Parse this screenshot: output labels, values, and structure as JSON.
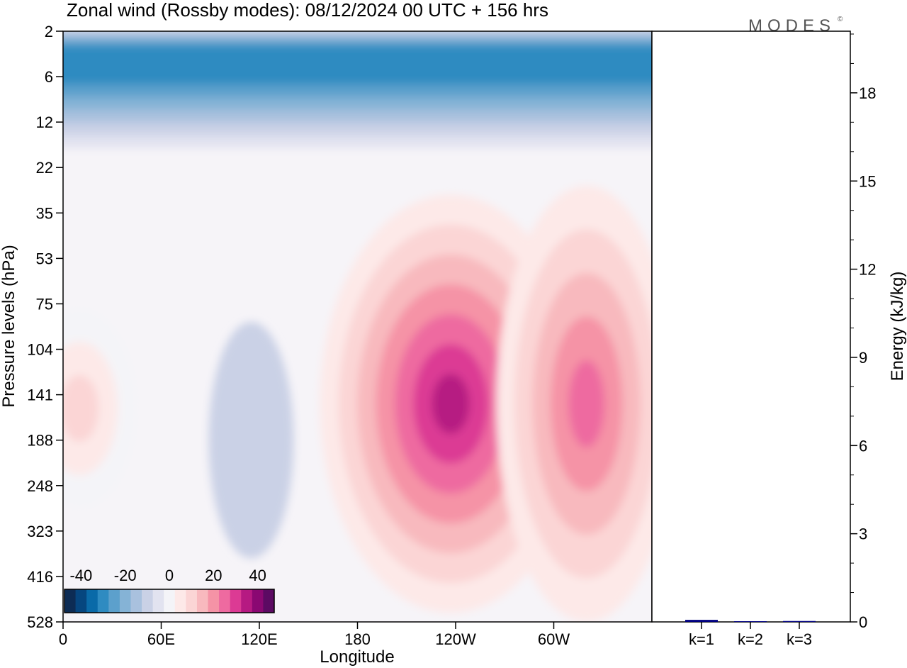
{
  "chart_data": [
    {
      "type": "heatmap",
      "title": "Zonal wind (Rossby modes):  08/12/2024  00 UTC  + 156 hrs",
      "xlabel": "Longitude",
      "ylabel": "Pressure levels (hPa)",
      "x_ticks": [
        "0",
        "60E",
        "120E",
        "180",
        "120W",
        "60W"
      ],
      "x_tick_values": [
        0,
        60,
        120,
        180,
        240,
        300
      ],
      "xlim": [
        0,
        360
      ],
      "y_ticks": [
        "2",
        "6",
        "12",
        "22",
        "35",
        "53",
        "75",
        "104",
        "141",
        "188",
        "248",
        "323",
        "416",
        "528"
      ],
      "y_scale": "model levels (non-linear)",
      "colorbar": {
        "tick_labels": [
          "-40",
          "-20",
          "0",
          "20",
          "40"
        ],
        "tick_values": [
          -40,
          -20,
          0,
          20,
          40
        ],
        "levels": [
          -45,
          -40,
          -35,
          -30,
          -25,
          -20,
          -15,
          -10,
          -5,
          0,
          5,
          10,
          15,
          20,
          25,
          30,
          35,
          40,
          45
        ],
        "colors": [
          "#0d2c54",
          "#06467f",
          "#0a6aa8",
          "#2f8bc1",
          "#5ca0cc",
          "#85b3d6",
          "#a9c1de",
          "#cad1e6",
          "#e2e3f0",
          "#f4f4f8",
          "#fde9e8",
          "#fbd5d5",
          "#f8b9be",
          "#f593a6",
          "#ee6aa0",
          "#dc3a94",
          "#b61a82",
          "#8a0872",
          "#5c0a63"
        ],
        "placement": "bottom-left"
      },
      "features": [
        {
          "region": "upper levels 2-12 hPa, all longitudes",
          "value_min": -30,
          "value_max": -5,
          "peak": -30
        },
        {
          "region": "120W, 104-248 hPa",
          "value_min": 5,
          "value_max": 35,
          "peak": 35
        },
        {
          "region": "40W, 104-248 hPa",
          "value_min": 5,
          "value_max": 25,
          "peak": 25
        },
        {
          "region": "0-30E, 104-248 hPa",
          "value_min": 0,
          "value_max": 10,
          "peak": 10
        },
        {
          "region": "110E, 104-323 hPa",
          "value_min": -10,
          "value_max": 0,
          "peak": -10
        }
      ]
    },
    {
      "type": "bar",
      "ylabel": "Energy (kJ/kg)",
      "categories": [
        "k=1",
        "k=2",
        "k=3"
      ],
      "values": [
        0.07,
        0.02,
        0.03
      ],
      "ylim": [
        0,
        20
      ],
      "y_ticks": [
        "0",
        "3",
        "6",
        "9",
        "12",
        "15",
        "18"
      ],
      "y_tick_values": [
        0,
        3,
        6,
        9,
        12,
        15,
        18
      ],
      "bar_color": "#000080"
    }
  ],
  "brand": "MODES",
  "brand_mark": "©"
}
